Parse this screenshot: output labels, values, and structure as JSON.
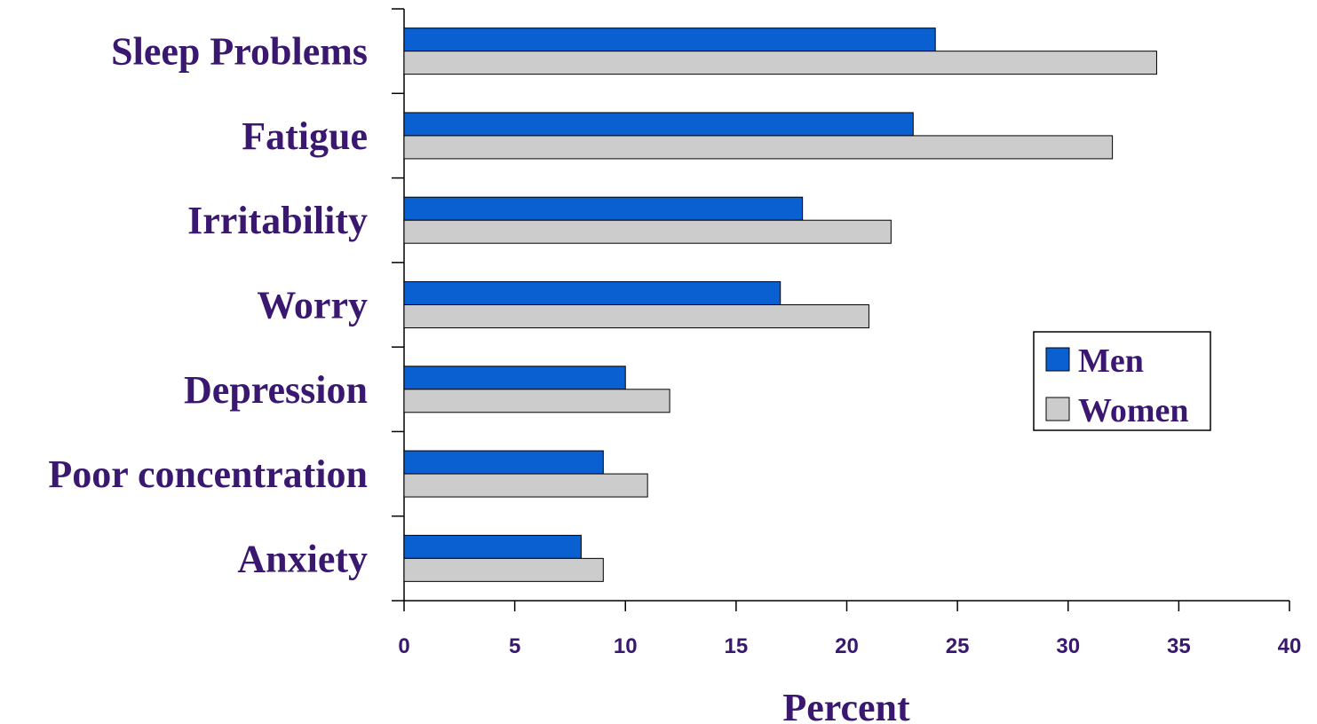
{
  "chart_data": {
    "type": "bar",
    "orientation": "horizontal",
    "categories": [
      "Sleep Problems",
      "Fatigue",
      "Irritability",
      "Worry",
      "Depression",
      "Poor concentration",
      "Anxiety"
    ],
    "series": [
      {
        "name": "Men",
        "values": [
          24,
          23,
          18,
          17,
          10,
          9,
          8
        ],
        "color": "#0a60d0"
      },
      {
        "name": "Women",
        "values": [
          34,
          32,
          22,
          21,
          12,
          11,
          9
        ],
        "color": "#cccccc"
      }
    ],
    "xlabel": "Percent",
    "ylabel": "",
    "xlim": [
      0,
      40
    ],
    "xticks": [
      0,
      5,
      10,
      15,
      20,
      25,
      30,
      35,
      40
    ],
    "grid": false,
    "legend_position": "right"
  }
}
